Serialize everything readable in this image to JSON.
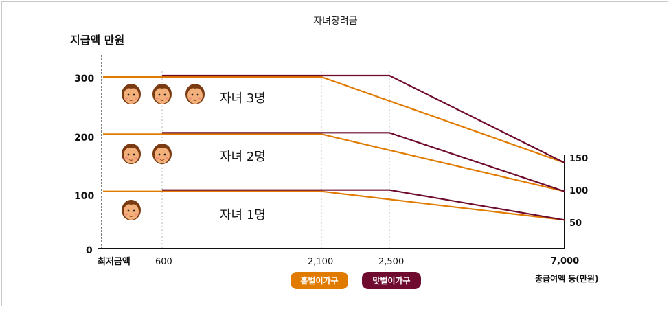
{
  "title": "자녀장려금",
  "colors": {
    "single_earner": "#E07B00",
    "dual_earner": "#6E0B2E",
    "grid": "#bbbbbb",
    "axis": "#111111"
  },
  "chart_data": {
    "type": "line",
    "ylabel": "지급액 만원",
    "xlabel": "총급여액 등(만원)",
    "y_ticks": [
      "300",
      "200",
      "100",
      "0"
    ],
    "x_tick_labels": [
      "최저금액",
      "600",
      "2,100",
      "2,500",
      "7,000"
    ],
    "right_tick_labels": [
      "150",
      "100",
      "50"
    ],
    "legend": [
      "홑벌이가구",
      "맞벌이가구"
    ],
    "groups": [
      {
        "label": "자녀 3명",
        "children": 3
      },
      {
        "label": "자녀 2명",
        "children": 2
      },
      {
        "label": "자녀 1명",
        "children": 1
      }
    ],
    "series": [
      {
        "name": "홑벌이가구 자녀 3명",
        "x": [
          0,
          600,
          2100,
          7000
        ],
        "y": [
          300,
          300,
          300,
          150
        ]
      },
      {
        "name": "맞벌이가구 자녀 3명",
        "x": [
          600,
          2500,
          7000
        ],
        "y": [
          300,
          300,
          150
        ]
      },
      {
        "name": "홑벌이가구 자녀 2명",
        "x": [
          0,
          600,
          2100,
          7000
        ],
        "y": [
          200,
          200,
          200,
          100
        ]
      },
      {
        "name": "맞벌이가구 자녀 2명",
        "x": [
          600,
          2500,
          7000
        ],
        "y": [
          200,
          200,
          100
        ]
      },
      {
        "name": "홑벌이가구 자녀 1명",
        "x": [
          0,
          600,
          2100,
          7000
        ],
        "y": [
          100,
          100,
          100,
          50
        ]
      },
      {
        "name": "맞벌이가구 자녀 1명",
        "x": [
          600,
          2500,
          7000
        ],
        "y": [
          100,
          100,
          50
        ]
      }
    ],
    "ylim": [
      0,
      300
    ],
    "xlim": [
      0,
      7000
    ]
  }
}
